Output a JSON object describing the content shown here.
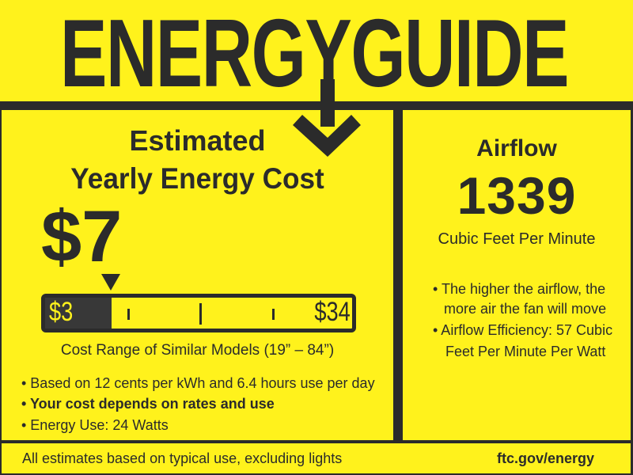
{
  "header": {
    "title": "ENERGYGUIDE"
  },
  "cost": {
    "heading_line1": "Estimated",
    "heading_line2": "Yearly Energy Cost",
    "value": "$7",
    "range": {
      "min_label": "$3",
      "max_label": "$34",
      "min": 3,
      "max": 34,
      "current": 7
    },
    "range_caption": "Cost Range of Similar Models (19” – 84”)",
    "bullets": [
      "• Based on 12 cents per kWh and 6.4 hours use per day",
      "• Your cost depends on rates and use",
      "• Energy Use: 24 Watts"
    ]
  },
  "airflow": {
    "heading": "Airflow",
    "value": "1339",
    "unit": "Cubic Feet Per Minute",
    "bullets": [
      "• The higher the airflow, the",
      "more air the fan will move",
      "• Airflow Efficiency: 57 Cubic",
      "Feet Per Minute Per Watt"
    ]
  },
  "footer": {
    "note": "All estimates based on typical use, excluding lights",
    "link": "ftc.gov/energy"
  },
  "colors": {
    "background": "#fff21c",
    "ink": "#2b2b2b"
  }
}
